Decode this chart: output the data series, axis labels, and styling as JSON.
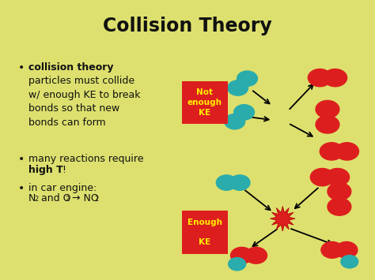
{
  "title": "Collision Theory",
  "bg_color": "#dde06e",
  "title_color": "#111111",
  "bullet_color": "#111111",
  "red_color": "#dd1e1e",
  "teal_color": "#2aacac",
  "label_bg": "#dd1e1e",
  "label_text_color": "#ffee00",
  "label_top": "Not\nenough\nKE",
  "label_bottom": "Enough\n\nKE",
  "figw": 4.74,
  "figh": 3.55,
  "dpi": 100
}
